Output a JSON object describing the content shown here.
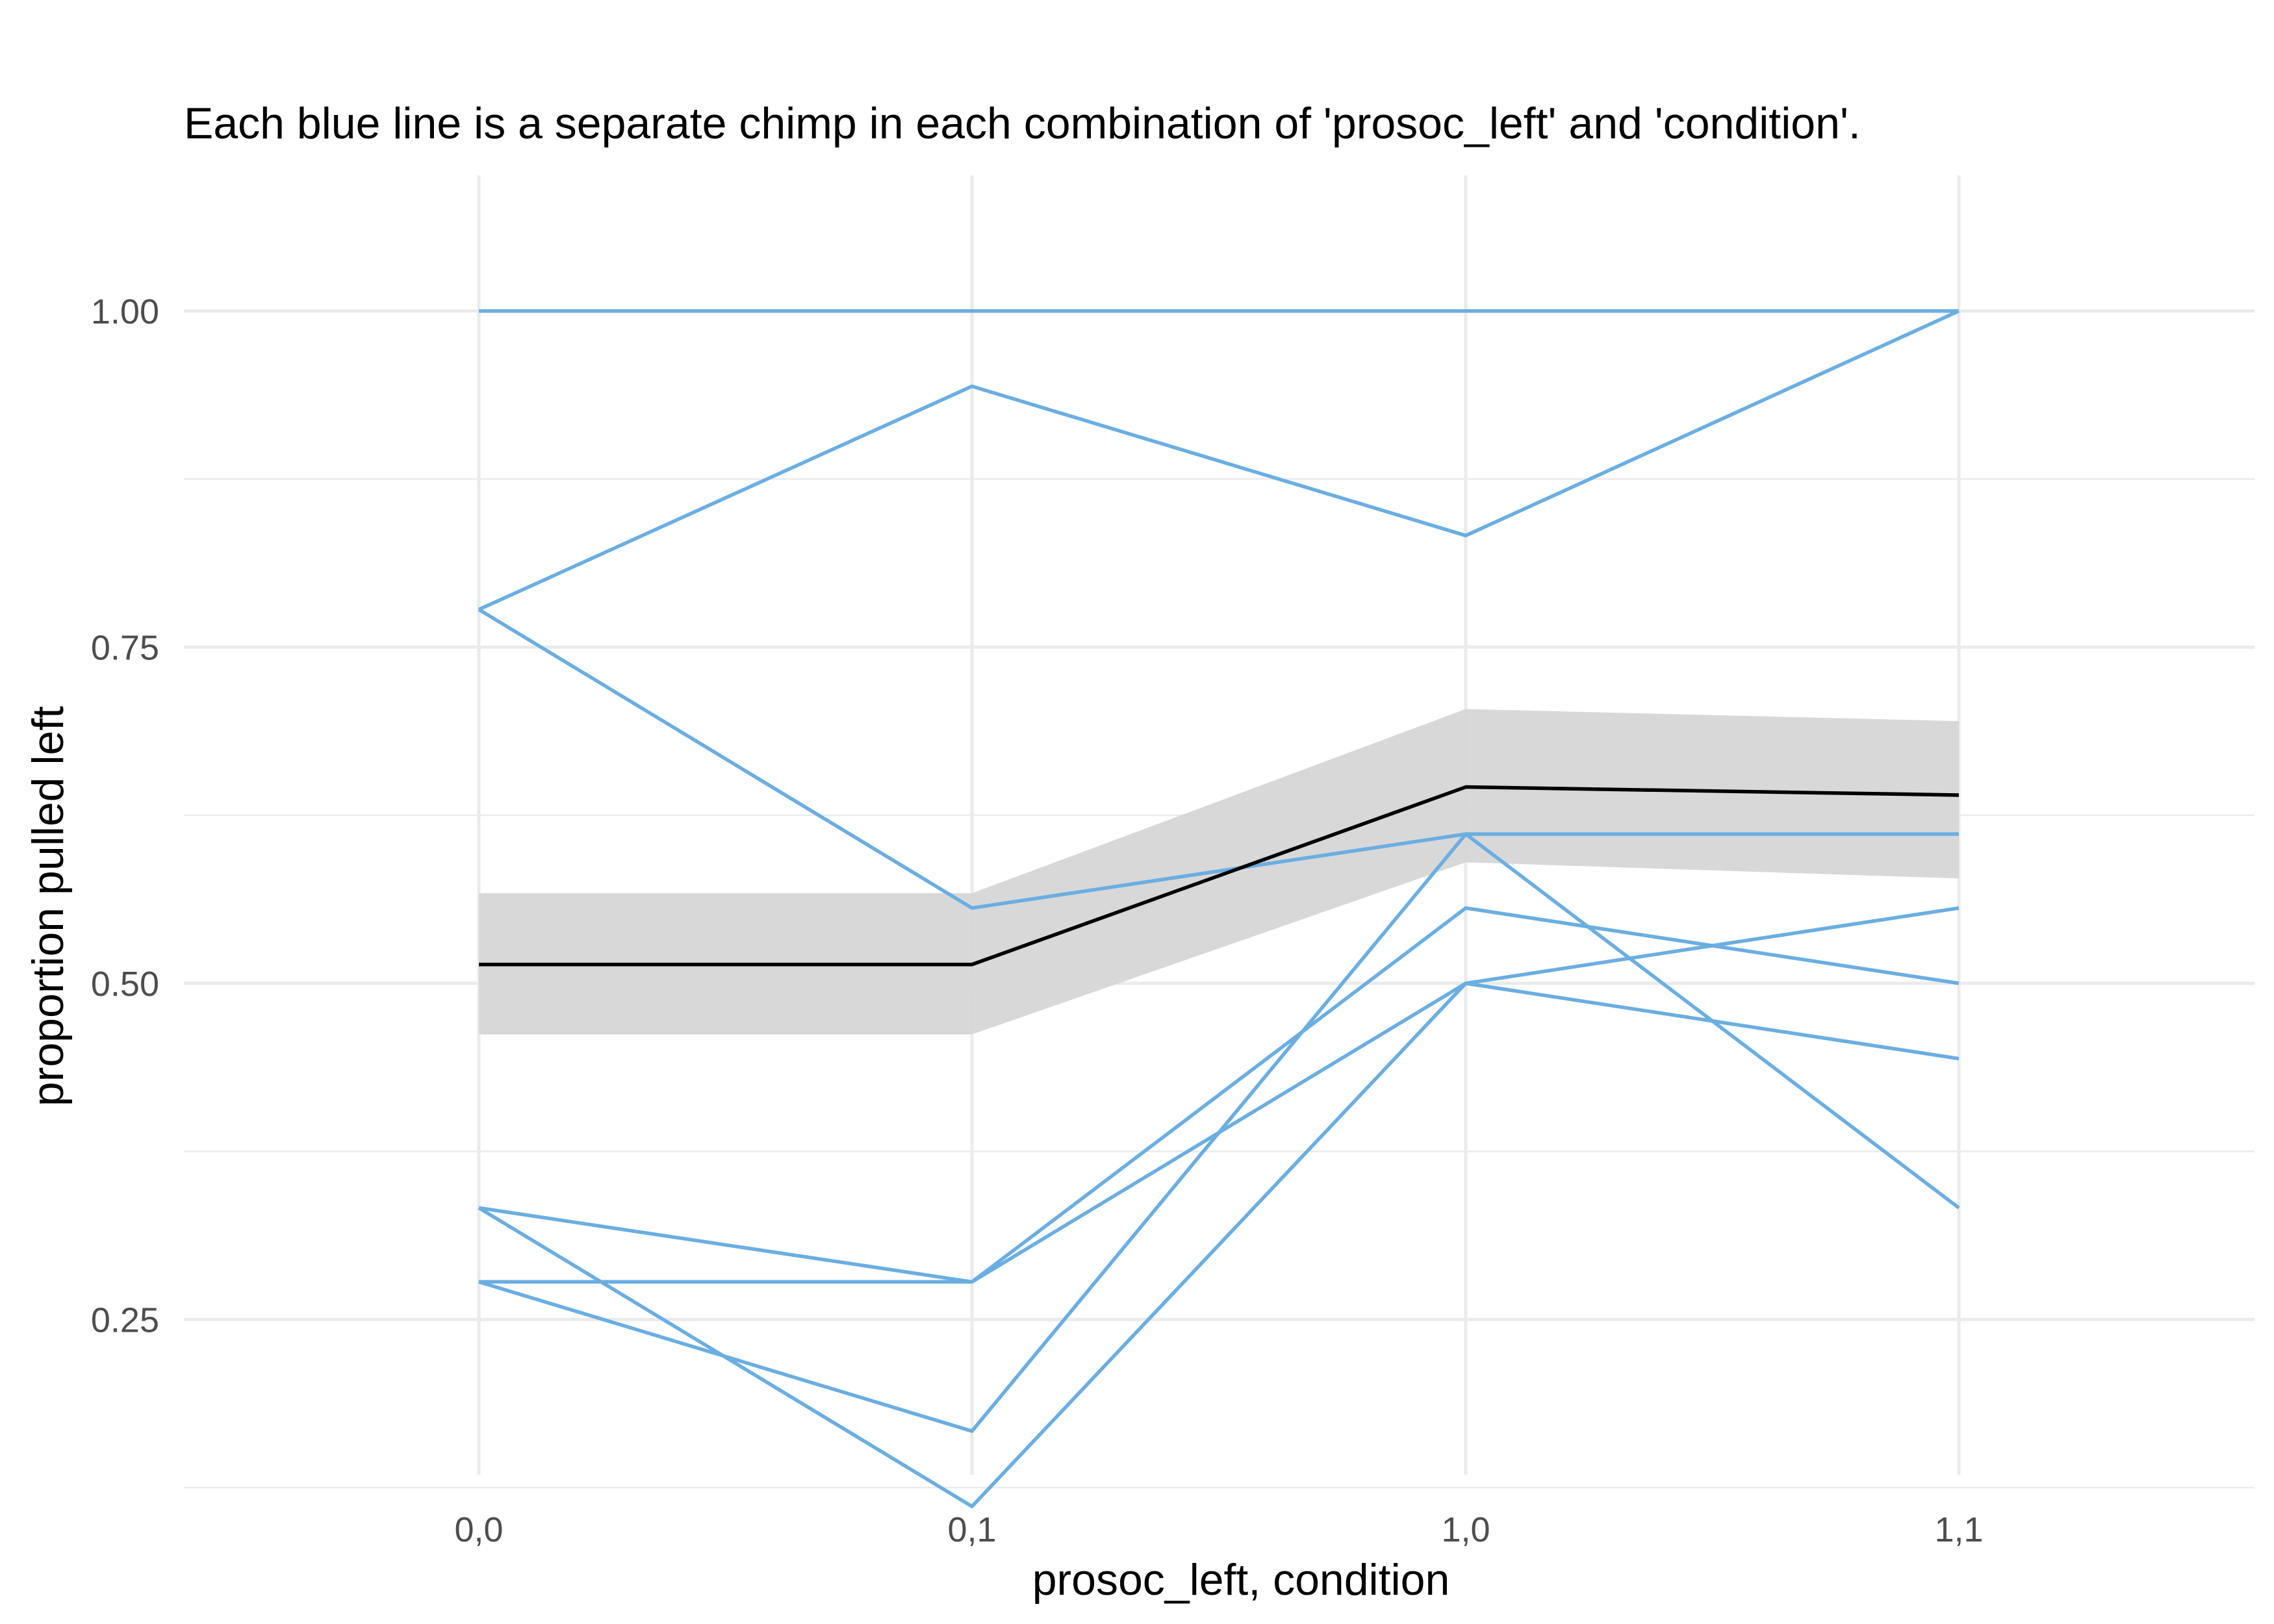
{
  "chart_data": {
    "type": "line",
    "title": "Each blue line is a separate chimp in each combination of 'prosoc_left' and 'condition'.",
    "xlabel": "prosoc_left, condition",
    "ylabel": "proportion pulled left",
    "categories": [
      "0,0",
      "0,1",
      "1,0",
      "1,1"
    ],
    "yticks": [
      "0.25",
      "0.50",
      "0.75",
      "1.00"
    ],
    "ylim": [
      0.08,
      1.04
    ],
    "grid": true,
    "series": [
      {
        "values": [
          1.0,
          1.0,
          1.0,
          1.0
        ]
      },
      {
        "values": [
          0.778,
          0.944,
          0.833,
          1.0
        ]
      },
      {
        "values": [
          0.778,
          0.556,
          0.611,
          0.611
        ]
      },
      {
        "values": [
          0.333,
          0.278,
          0.556,
          0.5
        ]
      },
      {
        "values": [
          0.333,
          0.111,
          0.5,
          0.444
        ]
      },
      {
        "values": [
          0.278,
          0.167,
          0.611,
          0.333
        ]
      },
      {
        "values": [
          0.278,
          0.278,
          0.5,
          0.556
        ]
      }
    ],
    "mean": {
      "values": [
        0.514,
        0.514,
        0.646,
        0.64
      ]
    },
    "ribbon": {
      "lower": [
        0.462,
        0.462,
        0.59,
        0.578
      ],
      "upper": [
        0.567,
        0.567,
        0.704,
        0.695
      ]
    },
    "colors": {
      "chimp_line": "#6aaee2",
      "mean_line": "#000000",
      "ribbon": "#d6d6d6",
      "grid": "#ebebeb"
    }
  }
}
